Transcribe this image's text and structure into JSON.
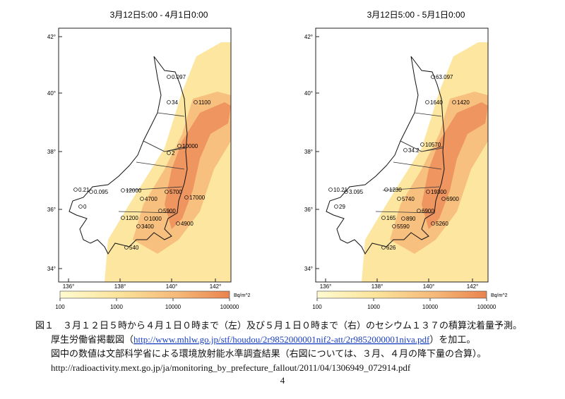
{
  "maps": [
    {
      "title": "3月12日5:00 - 4月1日0:00",
      "lat_labels": [
        "42°",
        "40°",
        "38°",
        "36°",
        "34°"
      ],
      "lon_labels": [
        "136°",
        "138°",
        "140°",
        "142°"
      ],
      "unit": "Bq/m^2",
      "scale_labels": [
        "100",
        "1000",
        "10000",
        "100000"
      ],
      "points": [
        "0.097",
        "34",
        "1100",
        "2",
        "10000",
        "0.21",
        "0.095",
        "0",
        "12000",
        "4700",
        "5700",
        "17000",
        "5900",
        "1200",
        "1000",
        "3400",
        "4900",
        "540"
      ]
    },
    {
      "title": "3月12日5:00 - 5月1日0:00",
      "lat_labels": [
        "42°",
        "40°",
        "38°",
        "36°",
        "34°"
      ],
      "lon_labels": [
        "136°",
        "138°",
        "140°",
        "142°"
      ],
      "unit": "Bq/m^2",
      "scale_labels": [
        "100",
        "1000",
        "10000",
        "100000"
      ],
      "points": [
        "63.097",
        "1640",
        "1420",
        "34.2",
        "10570",
        "10.21",
        "3.095",
        "29",
        "1230",
        "5740",
        "6900",
        "19300",
        "6900",
        "165",
        "890",
        "5590",
        "5260",
        "626"
      ]
    }
  ],
  "caption": {
    "figure": "図１　３月１２日５時から４月１日０時まで（左）及び５月１日０時まで（右）のセシウム１３７の積算沈着量予測。",
    "source_prefix": "厚生労働省掲載図（",
    "source_link": "http://www.mhlw.go.jp/stf/houdou/2r9852000001nif2-att/2r9852000001niva.pdf",
    "source_suffix": "）を加工。",
    "note": "図中の数値は文部科学省による環境放射能水準調査結果（右図については、３月、４月の降下量の合算）。",
    "url": "http://radioactivity.mext.go.jp/ja/monitoring_by_prefecture_fallout/2011/04/1306949_072914.pdf"
  },
  "page_number": "4"
}
